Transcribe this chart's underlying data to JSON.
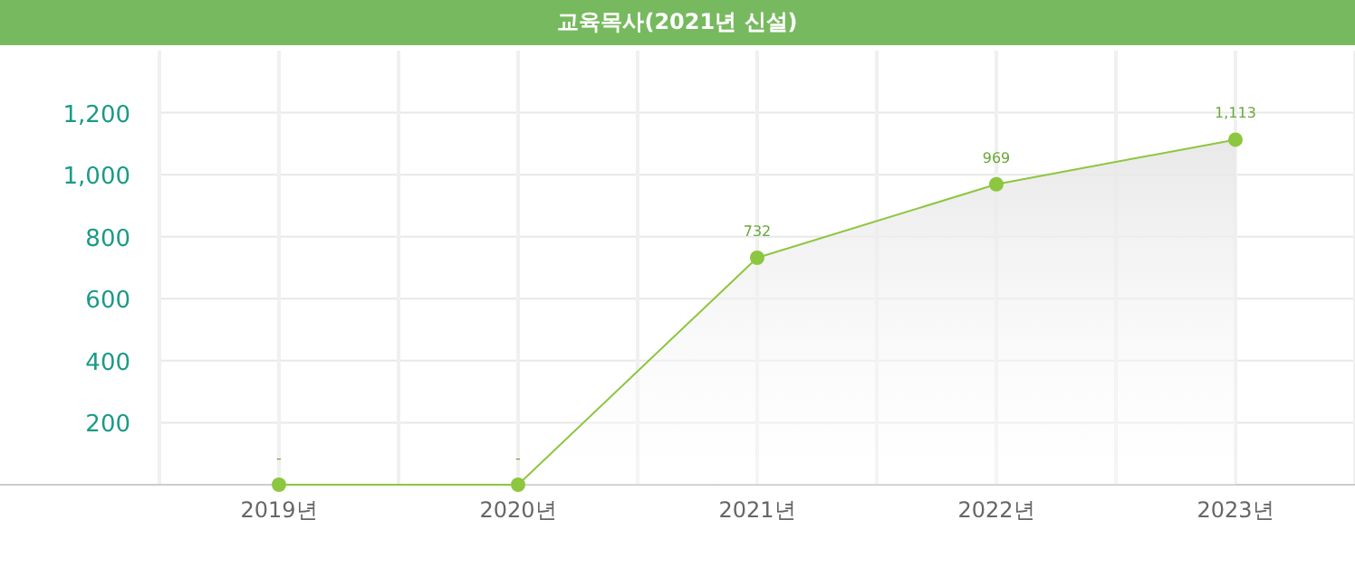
{
  "chart_data": {
    "type": "area",
    "title": "교육목사(2021년 신설)",
    "categories": [
      "2019년",
      "2020년",
      "2021년",
      "2022년",
      "2023년"
    ],
    "values": [
      0,
      0,
      732,
      969,
      1113
    ],
    "value_labels": [
      "-",
      "-",
      "732",
      "969",
      "1,113"
    ],
    "color": "#8dc63f",
    "marker": "circle",
    "line_style": "solid",
    "ylim": [
      0,
      1400
    ],
    "yticks": [
      200,
      400,
      600,
      800,
      {
        "value": 1000,
        "label": "1,000"
      },
      {
        "value": 1200,
        "label": "1,200"
      }
    ],
    "grid": true
  }
}
